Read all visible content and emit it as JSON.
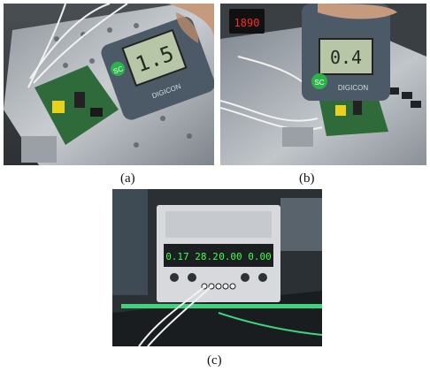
{
  "figure": {
    "panels": [
      {
        "id": "a",
        "caption": "(a)",
        "meter_display": "1.5",
        "meter_brand_badge": "SC",
        "meter_model": "DIGICON"
      },
      {
        "id": "b",
        "caption": "(b)",
        "meter_display": "0.4",
        "meter_brand_badge": "SC",
        "meter_model": "DIGICON",
        "indicator_display": "1890"
      },
      {
        "id": "c",
        "caption": "(c)",
        "psu_display_left": "0.17 28.2",
        "psu_display_right": "0.00 0.00"
      }
    ]
  },
  "colors": {
    "pcb_green": "#2f6b3a",
    "meter_body": "#4b5a66",
    "lcd_bg": "#b7c6a6",
    "led_green": "#3cff4a",
    "led_red": "#ff2a2a",
    "metal": "#b8bcc2"
  }
}
